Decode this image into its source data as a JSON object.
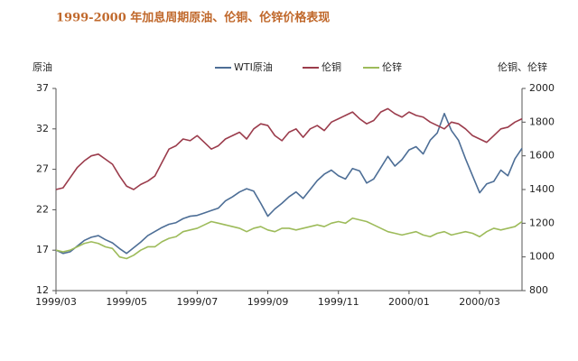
{
  "chart_data": {
    "type": "line",
    "title": "1999-2000 年加息周期原油、伦铜、伦锌价格表现",
    "y_label": "原油",
    "y2_label": "伦铜、伦锌",
    "categories": [
      "1999/03",
      null,
      null,
      null,
      null,
      null,
      null,
      null,
      null,
      null,
      "1999/05",
      null,
      null,
      null,
      null,
      null,
      null,
      null,
      null,
      null,
      "1999/07",
      null,
      null,
      null,
      null,
      null,
      null,
      null,
      null,
      null,
      "1999/09",
      null,
      null,
      null,
      null,
      null,
      null,
      null,
      null,
      null,
      "1999/11",
      null,
      null,
      null,
      null,
      null,
      null,
      null,
      null,
      null,
      "2000/01",
      null,
      null,
      null,
      null,
      null,
      null,
      null,
      null,
      null,
      "2000/03",
      null,
      null,
      null,
      null,
      null,
      null
    ],
    "ylim": [
      12,
      37
    ],
    "yticks": [
      12,
      17,
      22,
      27,
      32,
      37
    ],
    "y2lim": [
      800,
      2000
    ],
    "y2ticks": [
      800,
      1000,
      1200,
      1400,
      1600,
      1800,
      2000
    ],
    "series": [
      {
        "name": "WTI原油",
        "color": "#4d6e96",
        "values": [
          17,
          16.6,
          16.8,
          17.5,
          18.2,
          18.6,
          18.8,
          18.3,
          17.9,
          17.2,
          16.6,
          17.3,
          18,
          18.8,
          19.3,
          19.8,
          20.2,
          20.4,
          20.9,
          21.2,
          21.3,
          21.6,
          21.9,
          22.2,
          23.1,
          23.6,
          24.2,
          24.6,
          24.3,
          22.8,
          21.2,
          22.1,
          22.8,
          23.6,
          24.2,
          23.4,
          24.5,
          25.6,
          26.4,
          26.9,
          26.2,
          25.8,
          27.1,
          26.8,
          25.3,
          25.8,
          27.2,
          28.6,
          27.4,
          28.2,
          29.4,
          29.8,
          28.9,
          30.6,
          31.5,
          33.9,
          31.8,
          30.6,
          28.3,
          26.2,
          24.1,
          25.2,
          25.5,
          26.9,
          26.2,
          28.3,
          29.6
        ]
      },
      {
        "name": "伦铜",
        "color": "#9b3c4c",
        "axis": "y2",
        "values": [
          1400,
          1410,
          1470,
          1530,
          1570,
          1600,
          1610,
          1580,
          1550,
          1480,
          1420,
          1400,
          1430,
          1450,
          1480,
          1560,
          1640,
          1660,
          1700,
          1690,
          1720,
          1680,
          1640,
          1660,
          1700,
          1720,
          1740,
          1700,
          1760,
          1790,
          1780,
          1720,
          1690,
          1740,
          1760,
          1710,
          1760,
          1780,
          1750,
          1800,
          1820,
          1840,
          1860,
          1820,
          1790,
          1810,
          1860,
          1880,
          1850,
          1830,
          1860,
          1840,
          1830,
          1800,
          1780,
          1760,
          1800,
          1790,
          1760,
          1720,
          1700,
          1680,
          1720,
          1760,
          1770,
          1800,
          1820
        ]
      },
      {
        "name": "伦锌",
        "color": "#9dbb5a",
        "axis": "y2",
        "values": [
          1040,
          1030,
          1040,
          1060,
          1080,
          1090,
          1080,
          1060,
          1050,
          1000,
          990,
          1010,
          1040,
          1060,
          1060,
          1090,
          1110,
          1120,
          1150,
          1160,
          1170,
          1190,
          1210,
          1200,
          1190,
          1180,
          1170,
          1150,
          1170,
          1180,
          1160,
          1150,
          1170,
          1170,
          1160,
          1170,
          1180,
          1190,
          1180,
          1200,
          1210,
          1200,
          1230,
          1220,
          1210,
          1190,
          1170,
          1150,
          1140,
          1130,
          1140,
          1150,
          1130,
          1120,
          1140,
          1150,
          1130,
          1140,
          1150,
          1140,
          1120,
          1150,
          1170,
          1160,
          1170,
          1180,
          1210
        ]
      }
    ]
  }
}
